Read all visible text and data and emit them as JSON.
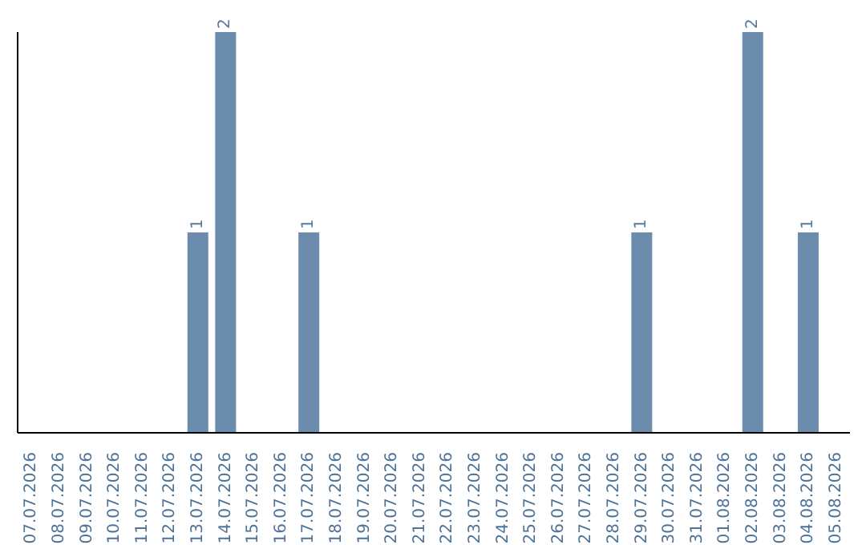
{
  "chart_data": {
    "type": "bar",
    "categories": [
      "07.07.2026",
      "08.07.2026",
      "09.07.2026",
      "10.07.2026",
      "11.07.2026",
      "12.07.2026",
      "13.07.2026",
      "14.07.2026",
      "15.07.2026",
      "16.07.2026",
      "17.07.2026",
      "18.07.2026",
      "19.07.2026",
      "20.07.2026",
      "21.07.2026",
      "22.07.2026",
      "23.07.2026",
      "24.07.2026",
      "25.07.2026",
      "26.07.2026",
      "27.07.2026",
      "28.07.2026",
      "29.07.2026",
      "30.07.2026",
      "31.07.2026",
      "01.08.2026",
      "02.08.2026",
      "03.08.2026",
      "04.08.2026",
      "05.08.2026"
    ],
    "values": [
      0,
      0,
      0,
      0,
      0,
      0,
      1,
      2,
      0,
      0,
      1,
      0,
      0,
      0,
      0,
      0,
      0,
      0,
      0,
      0,
      0,
      0,
      1,
      0,
      0,
      0,
      2,
      0,
      1,
      0
    ],
    "value_labels": [
      null,
      null,
      null,
      null,
      null,
      null,
      "1",
      "2",
      null,
      null,
      "1",
      null,
      null,
      null,
      null,
      null,
      null,
      null,
      null,
      null,
      null,
      null,
      "1",
      null,
      null,
      null,
      "2",
      null,
      "1",
      null
    ],
    "color": "#6b8cad"
  }
}
